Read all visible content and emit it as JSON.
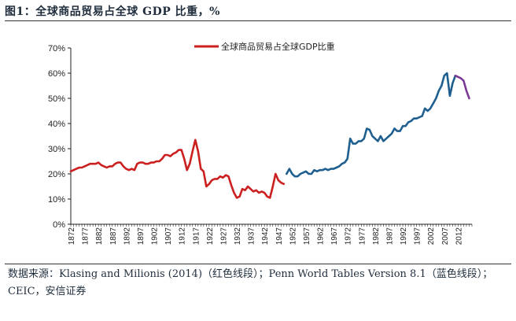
{
  "figure": {
    "title": "图1：全球商品贸易占全球 GDP 比重，%",
    "source": "数据来源：Klasing and Milionis (2014)（红色线段）；Penn World Tables Version 8.1（蓝色线段）；CEIC，安信证券"
  },
  "chart_data": {
    "type": "line",
    "title": "",
    "xlabel": "",
    "ylabel": "",
    "xlim": [
      1872,
      2017
    ],
    "ylim": [
      0,
      70
    ],
    "y_ticks": [
      "0%",
      "10%",
      "20%",
      "30%",
      "40%",
      "50%",
      "60%",
      "70%"
    ],
    "x_ticks": [
      "1872",
      "1877",
      "1882",
      "1887",
      "1892",
      "1897",
      "1902",
      "1907",
      "1912",
      "1917",
      "1922",
      "1927",
      "1932",
      "1937",
      "1942",
      "1947",
      "1952",
      "1957",
      "1962",
      "1967",
      "1972",
      "1977",
      "1982",
      "1987",
      "1992",
      "1997",
      "2002",
      "2007",
      "2012"
    ],
    "legend": {
      "label": "全球商品贸易占全球GDP比重",
      "position": "top-center"
    },
    "series": [
      {
        "name": "Klasing and Milionis (2014)",
        "color": "#cc1f1f",
        "x": [
          1872,
          1873,
          1874,
          1875,
          1876,
          1877,
          1878,
          1879,
          1880,
          1881,
          1882,
          1883,
          1884,
          1885,
          1886,
          1887,
          1888,
          1889,
          1890,
          1891,
          1892,
          1893,
          1894,
          1895,
          1896,
          1897,
          1898,
          1899,
          1900,
          1901,
          1902,
          1903,
          1904,
          1905,
          1906,
          1907,
          1908,
          1909,
          1910,
          1911,
          1912,
          1913,
          1914,
          1915,
          1916,
          1917,
          1918,
          1919,
          1920,
          1921,
          1922,
          1923,
          1924,
          1925,
          1926,
          1927,
          1928,
          1929,
          1930,
          1931,
          1932,
          1933,
          1934,
          1935,
          1936,
          1937,
          1938,
          1939,
          1940,
          1941,
          1942,
          1943,
          1944,
          1945,
          1946,
          1947,
          1948,
          1949
        ],
        "values": [
          21,
          21.5,
          22,
          22.5,
          22.5,
          23,
          23.5,
          24,
          24,
          24,
          24.5,
          23.5,
          23,
          22.5,
          23,
          23,
          24,
          24.5,
          24.5,
          23,
          22,
          21.5,
          22,
          21.5,
          24,
          24.5,
          24.5,
          24,
          24,
          24.5,
          24.5,
          25,
          25,
          26,
          27.5,
          27.5,
          27,
          28,
          28.5,
          29.5,
          29.5,
          26,
          21.5,
          24,
          29,
          33.5,
          29,
          22,
          21,
          15,
          16,
          17.5,
          18,
          18,
          19,
          18.5,
          19.5,
          19,
          15.5,
          12.5,
          10.5,
          11,
          14,
          13.5,
          15,
          14,
          13,
          13.5,
          12.5,
          13,
          12.5,
          11,
          10.5,
          15,
          20,
          17.5,
          16.5,
          16
        ]
      },
      {
        "name": "Penn World Tables Version 8.1",
        "color": "#1f5f8f",
        "x": [
          1950,
          1951,
          1952,
          1953,
          1954,
          1955,
          1956,
          1957,
          1958,
          1959,
          1960,
          1961,
          1962,
          1963,
          1964,
          1965,
          1966,
          1967,
          1968,
          1969,
          1970,
          1971,
          1972,
          1973,
          1974,
          1975,
          1976,
          1977,
          1978,
          1979,
          1980,
          1981,
          1982,
          1983,
          1984,
          1985,
          1986,
          1987,
          1988,
          1989,
          1990,
          1991,
          1992,
          1993,
          1994,
          1995,
          1996,
          1997,
          1998,
          1999,
          2000,
          2001,
          2002,
          2003,
          2004,
          2005,
          2006,
          2007,
          2008,
          2009,
          2010,
          2011
        ],
        "values": [
          20,
          22,
          20,
          19,
          19,
          20,
          20.5,
          21,
          20,
          20,
          21.5,
          21,
          21.5,
          21.5,
          22,
          21.5,
          22,
          22,
          22.5,
          23,
          24,
          24.5,
          26,
          34,
          32,
          32,
          33,
          33,
          34,
          38,
          37.5,
          35,
          34,
          33,
          35,
          33,
          34,
          35,
          36,
          38,
          37,
          37,
          39,
          39,
          40.5,
          41,
          42,
          42,
          42.5,
          43,
          46,
          45,
          46,
          48,
          50,
          53,
          55,
          59,
          60,
          51,
          56,
          59
        ]
      },
      {
        "name": "CEIC",
        "color": "#7a3a96",
        "x": [
          2011,
          2012,
          2013,
          2014,
          2015,
          2016
        ],
        "values": [
          59,
          58.5,
          58,
          57,
          53,
          50
        ]
      }
    ]
  }
}
